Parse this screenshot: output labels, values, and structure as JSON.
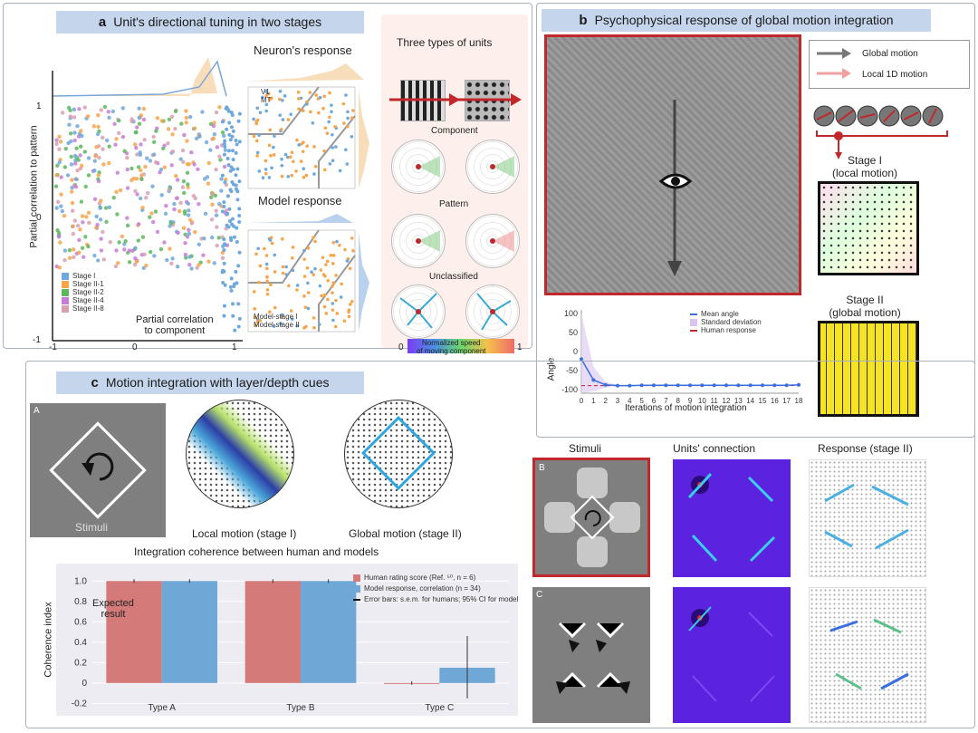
{
  "panel_a": {
    "title_letter": "a",
    "title": "Unit's directional tuning in two stages",
    "scatter_ylabel": "Partial correlation to pattern",
    "scatter_xlabel": "Partial correlation\nto component",
    "y_ticks": [
      "1",
      "0",
      "-1"
    ],
    "x_ticks": [
      "-1",
      "0",
      "1"
    ],
    "legend": [
      "Stage I",
      "Stage II-1",
      "Stage II-2",
      "Stage II-4",
      "Stage II-8"
    ],
    "legend_colors": [
      "#6fa8dc",
      "#f6a54a",
      "#5cb85c",
      "#c77dd6",
      "#d9a0b0"
    ],
    "neuron_title": "Neuron's response",
    "neuron_legend": [
      "V1",
      "MT"
    ],
    "model_title": "Model response",
    "model_legend": [
      "Model-stage I",
      "Model-stage II"
    ],
    "types_title": "Three types of units",
    "component": "Component",
    "pattern": "Pattern",
    "unclassified": "Unclassified",
    "colorbar_label": "Normalized speed\nof moving component",
    "cb_min": "0",
    "cb_max": "1"
  },
  "panel_b": {
    "title_letter": "b",
    "title": "Psychophysical response of global motion integration",
    "legend": [
      "Global motion",
      "Local 1D motion"
    ],
    "stage1": "Stage I\n(local motion)",
    "stage2": "Stage II\n(global motion)",
    "plot_ylabel": "Angle",
    "plot_xlabel": "Iterations of motion integration",
    "y_ticks": [
      "100",
      "50",
      "0",
      "-50",
      "-100"
    ],
    "x_ticks": [
      "0",
      "1",
      "2",
      "3",
      "4",
      "5",
      "6",
      "7",
      "8",
      "9",
      "10",
      "11",
      "12",
      "13",
      "14",
      "15",
      "16",
      "17",
      "18"
    ],
    "plot_legend": [
      "Mean angle",
      "Standard deviation",
      "Human response"
    ]
  },
  "panel_c": {
    "title_letter": "c",
    "title": "Motion integration with layer/depth cues",
    "A": "A",
    "stimuli_label": "Stimuli",
    "local_label": "Local motion (stage I)",
    "global_label": "Global motion (stage II)",
    "chart_title": "Integration coherence between human and models",
    "chart_ylabel": "Coherence index",
    "y_ticks": [
      "1.0",
      "0.8",
      "0.6",
      "0.4",
      "0.2",
      "0",
      "-0.2"
    ],
    "expected": "Expected\nresult",
    "legend": [
      "Human rating score (Ref. ⁵⁰, n = 6)",
      "Model response, correlation (n = 34)",
      "Error bars: s.e.m. for humans; 95% CI for model"
    ],
    "col_headers": [
      "Stimuli",
      "Units' connection",
      "Response (stage II)"
    ],
    "B": "B",
    "C": "C"
  },
  "chart_data": [
    {
      "type": "line",
      "title": "",
      "xlabel": "Iterations of motion integration",
      "ylabel": "Angle",
      "x": [
        0,
        1,
        2,
        3,
        4,
        5,
        6,
        7,
        8,
        9,
        10,
        11,
        12,
        13,
        14,
        15,
        16,
        17,
        18
      ],
      "series": [
        {
          "name": "Mean angle",
          "values": [
            -20,
            -75,
            -88,
            -90,
            -90,
            -89,
            -89,
            -89,
            -89,
            -89,
            -89,
            -89,
            -89,
            -89,
            -89,
            -89,
            -89,
            -89,
            -88
          ]
        },
        {
          "name": "Human response",
          "values": [
            -90,
            -90,
            -90,
            -90,
            -90,
            -90,
            -90,
            -90,
            -90,
            -90,
            -90,
            -90,
            -90,
            -90,
            -90,
            -90,
            -90,
            -90,
            -90
          ]
        }
      ],
      "ylim": [
        -110,
        110
      ]
    },
    {
      "type": "bar",
      "title": "Integration coherence between human and models",
      "ylabel": "Coherence index",
      "categories": [
        "Type A",
        "Type B",
        "Type C"
      ],
      "series": [
        {
          "name": "Human rating score (Ref. ⁵⁰, n = 6)",
          "values": [
            1.0,
            1.0,
            0.0
          ]
        },
        {
          "name": "Model response, correlation (n = 34)",
          "values": [
            1.0,
            1.0,
            0.15
          ]
        }
      ],
      "ylim": [
        -0.25,
        1.1
      ]
    }
  ],
  "colors": {
    "human": "#d47a79",
    "model": "#6fa8d6",
    "title_bar": "#c5d5ec",
    "red_frame": "#c0282b",
    "yellow": "#f6e324",
    "purple": "#5b22e0"
  }
}
